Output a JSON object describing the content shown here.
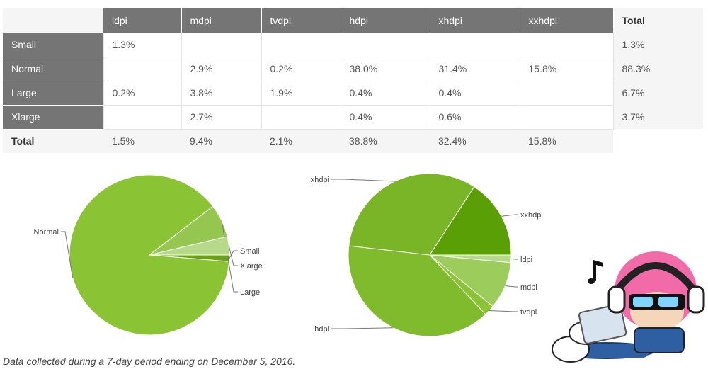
{
  "table": {
    "columns": [
      "ldpi",
      "mdpi",
      "tvdpi",
      "hdpi",
      "xhdpi",
      "xxhdpi"
    ],
    "total_label": "Total",
    "rows": [
      {
        "label": "Small",
        "cells": [
          "1.3%",
          "",
          "",
          "",
          "",
          ""
        ],
        "total": "1.3%"
      },
      {
        "label": "Normal",
        "cells": [
          "",
          "2.9%",
          "0.2%",
          "38.0%",
          "31.4%",
          "15.8%"
        ],
        "total": "88.3%"
      },
      {
        "label": "Large",
        "cells": [
          "0.2%",
          "3.8%",
          "1.9%",
          "0.4%",
          "0.4%",
          ""
        ],
        "total": "6.7%"
      },
      {
        "label": "Xlarge",
        "cells": [
          "",
          "2.7%",
          "",
          "0.4%",
          "0.6%",
          ""
        ],
        "total": "3.7%"
      }
    ],
    "totals": [
      "1.5%",
      "9.4%",
      "2.1%",
      "38.8%",
      "32.4%",
      "15.8%"
    ]
  },
  "chart_data": [
    {
      "type": "pie",
      "categories": [
        "Small",
        "Normal",
        "Large",
        "Xlarge"
      ],
      "values": [
        1.3,
        88.3,
        6.7,
        3.7
      ],
      "colors": [
        "#6aa016",
        "#8ac334",
        "#94c650",
        "#b6da89"
      ],
      "title": ""
    },
    {
      "type": "pie",
      "categories": [
        "ldpi",
        "mdpi",
        "tvdpi",
        "hdpi",
        "xhdpi",
        "xxhdpi"
      ],
      "values": [
        1.5,
        9.4,
        2.1,
        38.8,
        32.4,
        15.8
      ],
      "colors": [
        "#b6da89",
        "#9ccc5c",
        "#8ac334",
        "#80bb2e",
        "#79b526",
        "#5a9f06"
      ],
      "title": ""
    }
  ],
  "footnote": "Data collected during a 7-day period ending on December 5, 2016.",
  "colors": {
    "header_bg": "#757575",
    "header_text": "#ffffff",
    "total_bg": "#f5f5f5"
  },
  "mascot": {
    "icon": "music-note-icon",
    "description_icon": "mascot-illustration"
  }
}
